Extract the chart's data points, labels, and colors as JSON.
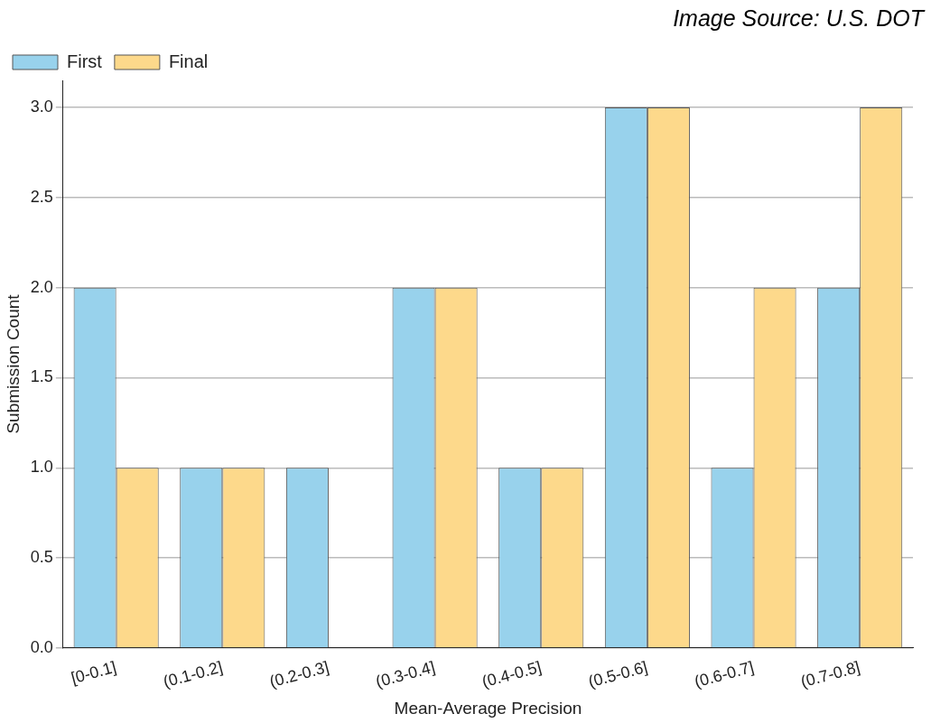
{
  "chart_data": {
    "type": "bar",
    "xlabel": "Mean-Average Precision",
    "ylabel": "Submission Count",
    "annotations": [
      "Image Source: U.S. DOT"
    ],
    "categories": [
      "[0-0.1]",
      "(0.1-0.2]",
      "(0.2-0.3]",
      "(0.3-0.4]",
      "(0.4-0.5]",
      "(0.5-0.6]",
      "(0.6-0.7]",
      "(0.7-0.8]"
    ],
    "series": [
      {
        "name": "First",
        "color": "#98d2ec",
        "values": [
          2,
          1,
          1,
          2,
          1,
          3,
          1,
          2
        ]
      },
      {
        "name": "Final",
        "color": "#fdd98b",
        "values": [
          1,
          1,
          0,
          2,
          1,
          3,
          2,
          3
        ]
      }
    ],
    "ylim": [
      0,
      3.15
    ],
    "yticks": [
      {
        "value": 0,
        "label": "0.0"
      },
      0.5,
      {
        "value": 1,
        "label": "1.0"
      },
      1.5,
      {
        "value": 2,
        "label": "2.0"
      },
      2.5,
      {
        "value": 3,
        "label": "3.0"
      }
    ],
    "grid": "y",
    "legend": "top left"
  }
}
